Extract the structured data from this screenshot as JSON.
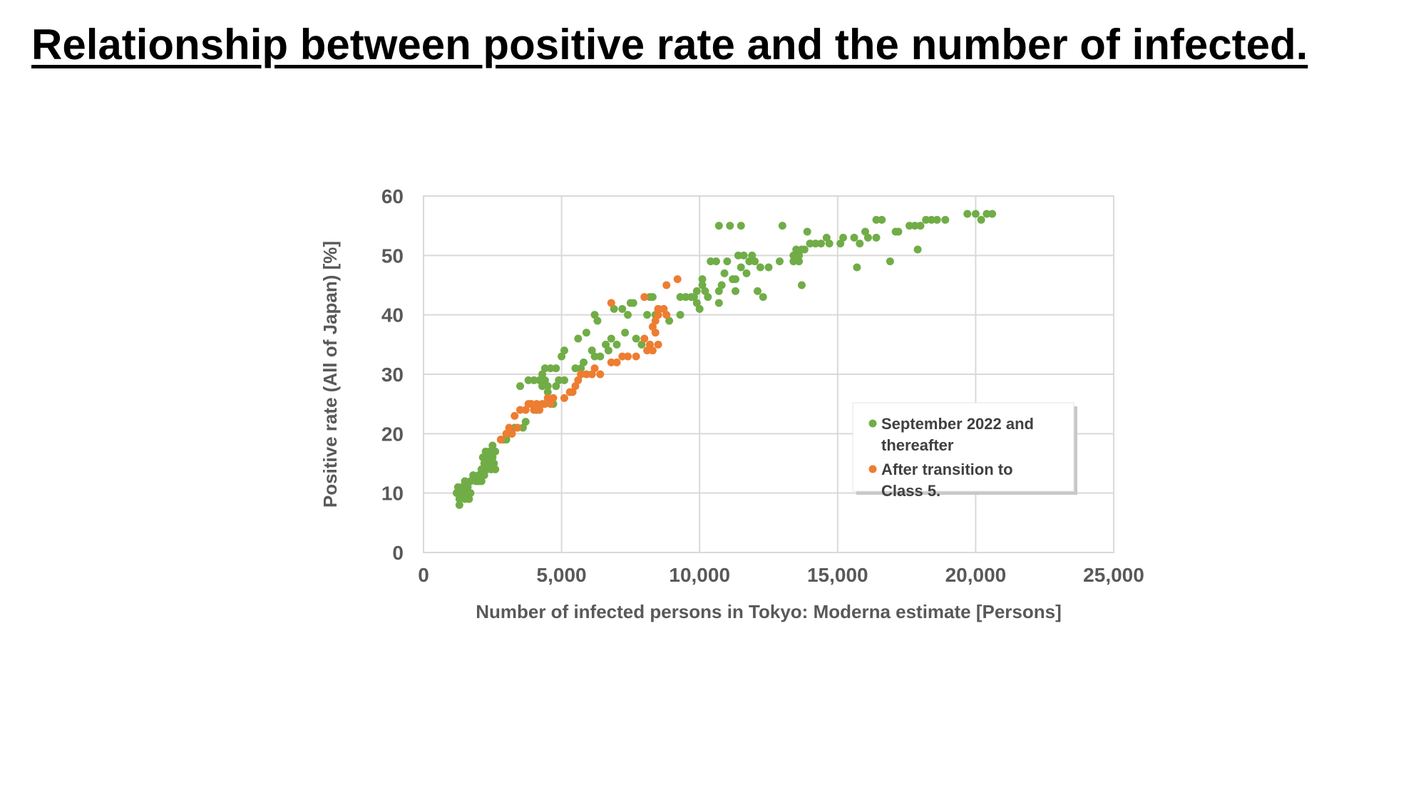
{
  "slide": {
    "title": "Relationship between positive rate and the number of infected."
  },
  "chart_data": {
    "type": "scatter",
    "xlabel": "Number of infected persons in Tokyo: Moderna estimate [Persons]",
    "ylabel": "Positive rate (All of Japan) [%]",
    "xlim": [
      0,
      25000
    ],
    "ylim": [
      0,
      60
    ],
    "xticks": [
      {
        "value": 0,
        "label": "0"
      },
      {
        "value": 5000,
        "label": "5,000"
      },
      {
        "value": 10000,
        "label": "10,000"
      },
      {
        "value": 15000,
        "label": "15,000"
      },
      {
        "value": 20000,
        "label": "20,000"
      },
      {
        "value": 25000,
        "label": "25,000"
      }
    ],
    "yticks": [
      {
        "value": 0,
        "label": "0"
      },
      {
        "value": 10,
        "label": "10"
      },
      {
        "value": 20,
        "label": "20"
      },
      {
        "value": 30,
        "label": "30"
      },
      {
        "value": 40,
        "label": "40"
      },
      {
        "value": 50,
        "label": "50"
      },
      {
        "value": 60,
        "label": "60"
      }
    ],
    "grid": true,
    "legend_position": "right",
    "series": [
      {
        "name": "September 2022 and thereafter",
        "color": "#70AD47",
        "legend_lines": [
          "September 2022 and",
          "thereafter"
        ],
        "points": [
          [
            1200,
            10
          ],
          [
            1250,
            11
          ],
          [
            1300,
            9
          ],
          [
            1300,
            8
          ],
          [
            1350,
            10
          ],
          [
            1400,
            11
          ],
          [
            1450,
            10
          ],
          [
            1500,
            9
          ],
          [
            1500,
            12
          ],
          [
            1550,
            10
          ],
          [
            1600,
            11
          ],
          [
            1650,
            9
          ],
          [
            1700,
            12
          ],
          [
            1700,
            10
          ],
          [
            1800,
            13
          ],
          [
            1900,
            12
          ],
          [
            2000,
            12
          ],
          [
            2000,
            13
          ],
          [
            2100,
            12
          ],
          [
            2100,
            14
          ],
          [
            2150,
            16
          ],
          [
            2200,
            13
          ],
          [
            2200,
            15
          ],
          [
            2250,
            17
          ],
          [
            2300,
            14
          ],
          [
            2350,
            16
          ],
          [
            2400,
            15
          ],
          [
            2400,
            17
          ],
          [
            2450,
            14
          ],
          [
            2500,
            16
          ],
          [
            2500,
            18
          ],
          [
            2550,
            15
          ],
          [
            2600,
            17
          ],
          [
            2600,
            14
          ],
          [
            2800,
            19
          ],
          [
            2900,
            19
          ],
          [
            3000,
            19
          ],
          [
            3100,
            20
          ],
          [
            3200,
            20
          ],
          [
            3300,
            21
          ],
          [
            3400,
            21
          ],
          [
            3500,
            28
          ],
          [
            3600,
            21
          ],
          [
            3700,
            22
          ],
          [
            3800,
            29
          ],
          [
            3900,
            25
          ],
          [
            4000,
            29
          ],
          [
            4100,
            24
          ],
          [
            4200,
            29
          ],
          [
            4300,
            30
          ],
          [
            4300,
            28
          ],
          [
            4400,
            29
          ],
          [
            4400,
            31
          ],
          [
            4500,
            28
          ],
          [
            4500,
            27
          ],
          [
            4600,
            31
          ],
          [
            4700,
            25
          ],
          [
            4800,
            31
          ],
          [
            4800,
            28
          ],
          [
            4900,
            29
          ],
          [
            5000,
            33
          ],
          [
            5100,
            34
          ],
          [
            5100,
            29
          ],
          [
            5500,
            31
          ],
          [
            5600,
            36
          ],
          [
            5700,
            30
          ],
          [
            5700,
            31
          ],
          [
            5800,
            32
          ],
          [
            5900,
            37
          ],
          [
            6100,
            34
          ],
          [
            6200,
            40
          ],
          [
            6200,
            33
          ],
          [
            6300,
            39
          ],
          [
            6400,
            33
          ],
          [
            6600,
            35
          ],
          [
            6700,
            34
          ],
          [
            6800,
            36
          ],
          [
            6900,
            41
          ],
          [
            7000,
            35
          ],
          [
            7200,
            41
          ],
          [
            7300,
            37
          ],
          [
            7400,
            40
          ],
          [
            7500,
            42
          ],
          [
            7600,
            42
          ],
          [
            7700,
            36
          ],
          [
            7900,
            35
          ],
          [
            8100,
            40
          ],
          [
            8200,
            43
          ],
          [
            8300,
            43
          ],
          [
            8400,
            40
          ],
          [
            8500,
            41
          ],
          [
            8700,
            41
          ],
          [
            8900,
            39
          ],
          [
            9300,
            40
          ],
          [
            9300,
            43
          ],
          [
            9500,
            43
          ],
          [
            9700,
            43
          ],
          [
            9800,
            43
          ],
          [
            9900,
            42
          ],
          [
            9900,
            44
          ],
          [
            10000,
            41
          ],
          [
            10100,
            45
          ],
          [
            10100,
            46
          ],
          [
            10200,
            44
          ],
          [
            10300,
            43
          ],
          [
            10400,
            49
          ],
          [
            10600,
            49
          ],
          [
            10700,
            44
          ],
          [
            10700,
            42
          ],
          [
            10700,
            55
          ],
          [
            10800,
            45
          ],
          [
            10900,
            47
          ],
          [
            11000,
            49
          ],
          [
            11100,
            55
          ],
          [
            11200,
            46
          ],
          [
            11300,
            46
          ],
          [
            11300,
            44
          ],
          [
            11400,
            50
          ],
          [
            11500,
            48
          ],
          [
            11500,
            55
          ],
          [
            11600,
            50
          ],
          [
            11700,
            47
          ],
          [
            11800,
            49
          ],
          [
            11900,
            50
          ],
          [
            12000,
            49
          ],
          [
            12100,
            44
          ],
          [
            12200,
            48
          ],
          [
            12300,
            43
          ],
          [
            12500,
            48
          ],
          [
            12900,
            49
          ],
          [
            13000,
            55
          ],
          [
            13400,
            50
          ],
          [
            13400,
            49
          ],
          [
            13500,
            51
          ],
          [
            13600,
            49
          ],
          [
            13600,
            50
          ],
          [
            13700,
            51
          ],
          [
            13700,
            45
          ],
          [
            13800,
            51
          ],
          [
            13900,
            54
          ],
          [
            14000,
            52
          ],
          [
            14200,
            52
          ],
          [
            14400,
            52
          ],
          [
            14600,
            53
          ],
          [
            14700,
            52
          ],
          [
            15100,
            52
          ],
          [
            15200,
            53
          ],
          [
            15600,
            53
          ],
          [
            15700,
            48
          ],
          [
            15800,
            52
          ],
          [
            16000,
            54
          ],
          [
            16100,
            53
          ],
          [
            16400,
            53
          ],
          [
            16400,
            56
          ],
          [
            16600,
            56
          ],
          [
            16900,
            49
          ],
          [
            17100,
            54
          ],
          [
            17200,
            54
          ],
          [
            17600,
            55
          ],
          [
            17800,
            55
          ],
          [
            17900,
            51
          ],
          [
            18000,
            55
          ],
          [
            18200,
            56
          ],
          [
            18400,
            56
          ],
          [
            18600,
            56
          ],
          [
            18900,
            56
          ],
          [
            19700,
            57
          ],
          [
            20000,
            57
          ],
          [
            20200,
            56
          ],
          [
            20400,
            57
          ],
          [
            20600,
            57
          ]
        ]
      },
      {
        "name": "After transition to Class 5.",
        "color": "#ED7D31",
        "legend_lines": [
          "After transition to",
          "Class 5."
        ],
        "points": [
          [
            2800,
            19
          ],
          [
            3000,
            20
          ],
          [
            3100,
            21
          ],
          [
            3200,
            20
          ],
          [
            3300,
            23
          ],
          [
            3400,
            21
          ],
          [
            3500,
            24
          ],
          [
            3700,
            24
          ],
          [
            3800,
            25
          ],
          [
            3900,
            25
          ],
          [
            4000,
            24
          ],
          [
            4100,
            25
          ],
          [
            4200,
            24
          ],
          [
            4300,
            25
          ],
          [
            4400,
            25
          ],
          [
            4500,
            26
          ],
          [
            4600,
            25
          ],
          [
            4700,
            26
          ],
          [
            5100,
            26
          ],
          [
            5300,
            27
          ],
          [
            5400,
            27
          ],
          [
            5500,
            28
          ],
          [
            5600,
            29
          ],
          [
            5700,
            30
          ],
          [
            5900,
            30
          ],
          [
            6100,
            30
          ],
          [
            6200,
            31
          ],
          [
            6400,
            30
          ],
          [
            6800,
            42
          ],
          [
            6800,
            32
          ],
          [
            7000,
            32
          ],
          [
            7200,
            33
          ],
          [
            7400,
            33
          ],
          [
            7700,
            33
          ],
          [
            8000,
            43
          ],
          [
            8000,
            36
          ],
          [
            8100,
            34
          ],
          [
            8200,
            35
          ],
          [
            8300,
            34
          ],
          [
            8300,
            38
          ],
          [
            8400,
            37
          ],
          [
            8400,
            39
          ],
          [
            8500,
            40
          ],
          [
            8500,
            41
          ],
          [
            8500,
            35
          ],
          [
            8700,
            41
          ],
          [
            8800,
            40
          ],
          [
            8800,
            45
          ],
          [
            9200,
            46
          ]
        ]
      }
    ]
  }
}
